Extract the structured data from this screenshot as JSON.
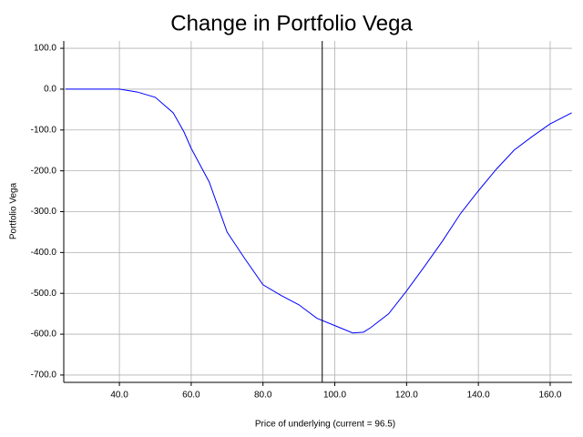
{
  "chart_data": {
    "type": "line",
    "title": "Change in Portfolio Vega",
    "x_label": "Price of underlying (current = 96.5)",
    "y_label": "Portfolio Vega",
    "current": 96.5,
    "x": [
      25,
      30,
      35,
      40,
      45,
      50,
      55,
      58,
      60,
      65,
      70,
      75,
      80,
      85,
      90,
      95,
      100,
      105,
      108,
      110,
      115,
      120,
      125,
      130,
      135,
      140,
      145,
      150,
      155,
      160,
      166
    ],
    "series": [
      {
        "name": "Portfolio Vega",
        "color": "#0000ff",
        "values": [
          0,
          0,
          0,
          0,
          -7,
          -20,
          -58,
          -105,
          -145,
          -227,
          -350,
          -416,
          -479,
          -505,
          -528,
          -561,
          -579,
          -597,
          -595,
          -584,
          -550,
          -494,
          -434,
          -372,
          -305,
          -249,
          -196,
          -149,
          -116,
          -85,
          -58
        ]
      }
    ],
    "xlim": [
      24.5,
      166.1
    ],
    "ylim": [
      -718,
      118
    ],
    "xticks": [
      {
        "value": 40,
        "label": "40.0"
      },
      {
        "value": 60,
        "label": "60.0"
      },
      {
        "value": 80,
        "label": "80.0"
      },
      {
        "value": 100,
        "label": "100.0"
      },
      {
        "value": 120,
        "label": "120.0"
      },
      {
        "value": 140,
        "label": "140.0"
      },
      {
        "value": 160,
        "label": "160.0"
      }
    ],
    "yticks": [
      {
        "value": 100,
        "label": "100.0"
      },
      {
        "value": 0,
        "label": "0.0"
      },
      {
        "value": -100,
        "label": "-100.0"
      },
      {
        "value": -200,
        "label": "-200.0"
      },
      {
        "value": -300,
        "label": "-300.0"
      },
      {
        "value": -400,
        "label": "-400.0"
      },
      {
        "value": -500,
        "label": "-500.0"
      },
      {
        "value": -600,
        "label": "-600.0"
      },
      {
        "value": -700,
        "label": "-700.0"
      }
    ],
    "grid": true
  }
}
